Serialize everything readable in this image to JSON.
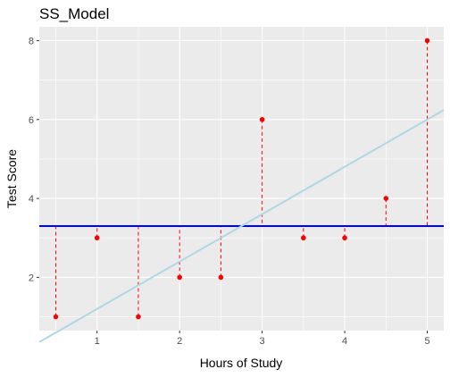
{
  "chart_data": {
    "type": "scatter",
    "title": "SS_Model",
    "xlabel": "Hours of Study",
    "ylabel": "Test Score",
    "xlim": [
      0.3,
      5.2
    ],
    "ylim": [
      0.65,
      8.35
    ],
    "x_ticks": [
      1,
      2,
      3,
      4,
      5
    ],
    "y_ticks": [
      2,
      4,
      6,
      8
    ],
    "grid": true,
    "points": [
      {
        "x": 0.5,
        "y": 1
      },
      {
        "x": 1.0,
        "y": 3
      },
      {
        "x": 1.5,
        "y": 1
      },
      {
        "x": 2.0,
        "y": 2
      },
      {
        "x": 2.5,
        "y": 2
      },
      {
        "x": 3.0,
        "y": 6
      },
      {
        "x": 3.5,
        "y": 3
      },
      {
        "x": 4.0,
        "y": 3
      },
      {
        "x": 4.5,
        "y": 4
      },
      {
        "x": 5.0,
        "y": 8
      }
    ],
    "mean_line": {
      "y": 3.3
    },
    "fit_line": {
      "intercept": 0.0,
      "slope": 1.2
    },
    "colors": {
      "panel": "#ebebeb",
      "grid": "#ffffff",
      "points": "#ff0000",
      "residuals": "#ff0000",
      "mean_line": "#0000ff",
      "fit_line": "#add8e6"
    }
  }
}
